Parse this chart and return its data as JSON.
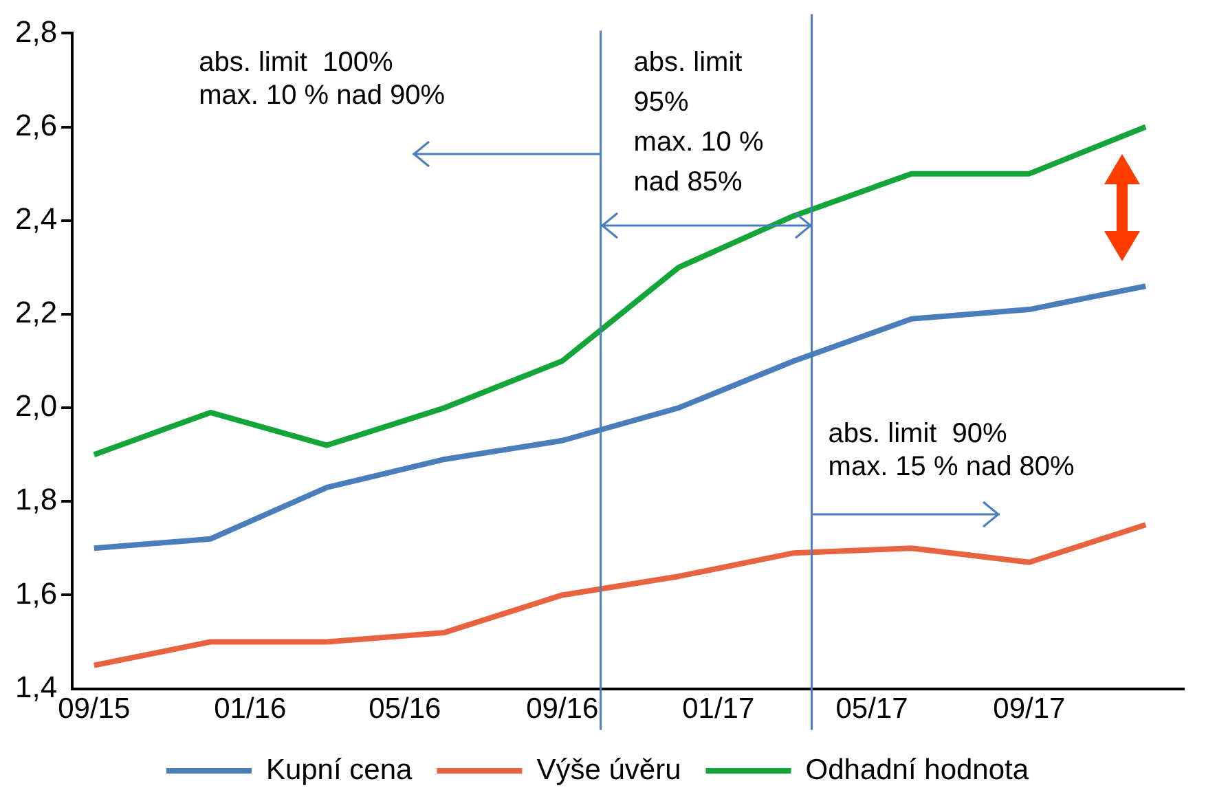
{
  "chart_data": {
    "type": "line",
    "x": [
      "2015-09",
      "2015-12",
      "2016-03",
      "2016-06",
      "2016-09",
      "2016-12",
      "2017-03",
      "2017-06",
      "2017-09",
      "2017-12"
    ],
    "series": [
      {
        "name": "Kupní cena",
        "color": "#4a7ebb",
        "values": [
          1.7,
          1.72,
          1.83,
          1.89,
          1.93,
          2.0,
          2.1,
          2.19,
          2.21,
          2.26
        ]
      },
      {
        "name": "Výše úvěru",
        "color": "#e8633f",
        "values": [
          1.45,
          1.5,
          1.5,
          1.52,
          1.6,
          1.64,
          1.69,
          1.7,
          1.67,
          1.75
        ]
      },
      {
        "name": "Odhadní hodnota",
        "color": "#13a538",
        "values": [
          1.9,
          1.99,
          1.92,
          2.0,
          2.1,
          2.3,
          2.41,
          2.5,
          2.5,
          2.6
        ]
      }
    ],
    "xlim": [
      "2015-08-15",
      "2017-12-31"
    ],
    "xticks": [
      {
        "value": "2015-09",
        "label": "09/15"
      },
      {
        "value": "2016-01",
        "label": "01/16"
      },
      {
        "value": "2016-05",
        "label": "05/16"
      },
      {
        "value": "2016-09",
        "label": "09/16"
      },
      {
        "value": "2017-01",
        "label": "01/17"
      },
      {
        "value": "2017-05",
        "label": "05/17"
      },
      {
        "value": "2017-09",
        "label": "09/17"
      }
    ],
    "ylim": [
      1.4,
      2.8
    ],
    "yticks": [
      {
        "value": 1.4,
        "label": "1,4"
      },
      {
        "value": 1.6,
        "label": "1,6"
      },
      {
        "value": 1.8,
        "label": "1,8"
      },
      {
        "value": 2.0,
        "label": "2,0"
      },
      {
        "value": 2.2,
        "label": "2,2"
      },
      {
        "value": 2.4,
        "label": "2,4"
      },
      {
        "value": 2.6,
        "label": "2,6"
      },
      {
        "value": 2.8,
        "label": "2,8"
      }
    ],
    "ref_lines": [
      {
        "axis": "x",
        "value": "2016-10-01",
        "color": "#4a7ebb"
      },
      {
        "axis": "x",
        "value": "2017-03-15",
        "color": "#4a7ebb"
      }
    ],
    "annotations": [
      "abs. limit  100%\nmax. 10 % nad 90%",
      "abs. limit\n95%\nmax. 10 %\nnad 85%",
      "abs. limit  90%\nmax. 15 % nad 80%"
    ],
    "grid": false,
    "legend": "bottom",
    "marker": "none",
    "line_style": "solid"
  }
}
